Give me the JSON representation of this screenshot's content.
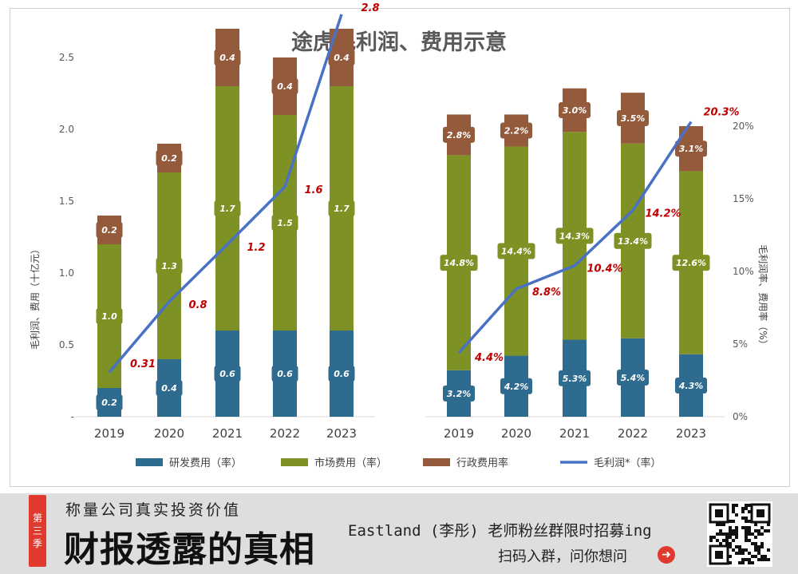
{
  "chart_data": [
    {
      "type": "bar",
      "stacked": true,
      "title": "途虎毛利润、费用示意",
      "categories": [
        "2019",
        "2020",
        "2021",
        "2022",
        "2023"
      ],
      "ylabel": "毛利润、费用（十亿元）",
      "ylim": [
        0,
        2.8
      ],
      "yticks": [
        "-",
        "0.5",
        "1.0",
        "1.5",
        "2.0",
        "2.5"
      ],
      "series": [
        {
          "name": "研发费用（率）",
          "values": [
            0.2,
            0.4,
            0.6,
            0.6,
            0.6
          ],
          "labels": [
            "0.2",
            "0.4",
            "0.6",
            "0.6",
            "0.6"
          ],
          "color": "#2e6b8f"
        },
        {
          "name": "市场费用（率）",
          "values": [
            1.0,
            1.3,
            1.7,
            1.5,
            1.7
          ],
          "labels": [
            "1.0",
            "1.3",
            "1.7",
            "1.5",
            "1.7"
          ],
          "color": "#7e9124"
        },
        {
          "name": "行政费用率",
          "values": [
            0.2,
            0.2,
            0.4,
            0.4,
            0.4
          ],
          "labels": [
            "0.2",
            "0.2",
            "0.4",
            "0.4",
            "0.4"
          ],
          "color": "#935a3c"
        }
      ],
      "line": {
        "name": "毛利润*（率）",
        "values": [
          0.31,
          0.8,
          1.2,
          1.6,
          2.8
        ],
        "labels": [
          "0.31",
          "0.8",
          "1.2",
          "1.6",
          "2.8"
        ],
        "color": "#4a72c4"
      }
    },
    {
      "type": "bar",
      "stacked": true,
      "categories": [
        "2019",
        "2020",
        "2021",
        "2022",
        "2023"
      ],
      "ylabel": "毛利润率、费用率（%）",
      "ylim": [
        0,
        20.5
      ],
      "yticks": [
        "0%",
        "5%",
        "10%",
        "15%",
        "20%"
      ],
      "series": [
        {
          "name": "研发费用（率）",
          "values": [
            3.2,
            4.2,
            5.3,
            5.4,
            4.3
          ],
          "labels": [
            "3.2%",
            "4.2%",
            "5.3%",
            "5.4%",
            "4.3%"
          ],
          "color": "#2e6b8f"
        },
        {
          "name": "市场费用（率）",
          "values": [
            14.8,
            14.4,
            14.3,
            13.4,
            12.6
          ],
          "labels": [
            "14.8%",
            "14.4%",
            "14.3%",
            "13.4%",
            "12.6%"
          ],
          "color": "#7e9124"
        },
        {
          "name": "行政费用率",
          "values": [
            2.8,
            2.2,
            3.0,
            3.5,
            3.1
          ],
          "labels": [
            "2.8%",
            "2.2%",
            "3.0%",
            "3.5%",
            "3.1%"
          ],
          "color": "#935a3c"
        }
      ],
      "line": {
        "name": "毛利润*（率）",
        "values": [
          4.4,
          8.8,
          10.4,
          14.2,
          20.3
        ],
        "labels": [
          "4.4%",
          "8.8%",
          "10.4%",
          "14.2%",
          "20.3%"
        ],
        "color": "#4a72c4"
      }
    }
  ],
  "legend": [
    {
      "label": "研发费用（率）",
      "color": "#2e6b8f",
      "kind": "bar"
    },
    {
      "label": "市场费用（率）",
      "color": "#7e9124",
      "kind": "bar"
    },
    {
      "label": "行政费用率",
      "color": "#935a3c",
      "kind": "bar"
    },
    {
      "label": "毛利润*（率）",
      "color": "#4a72c4",
      "kind": "line"
    }
  ],
  "footer": {
    "season_chars": [
      "第",
      "三",
      "季"
    ],
    "slogan": "称量公司真实投资价值",
    "brand": "财报透露的真相",
    "promo": "Eastland (李彤) 老师粉丝群限时招募ing",
    "scan_text": "扫码入群，问你想问",
    "arrow_icon": "arrow-right-circle-icon",
    "qr_icon": "qr-code-icon"
  }
}
